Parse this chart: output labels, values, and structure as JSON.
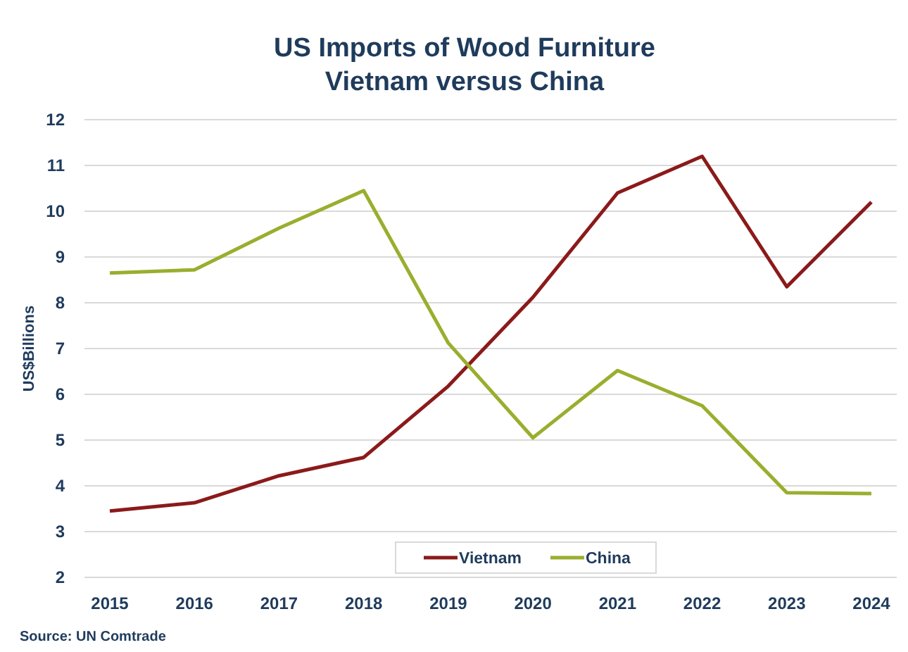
{
  "chart_data": {
    "type": "line",
    "title": "US Imports of Wood Furniture",
    "subtitle": "Vietnam versus China",
    "ylabel": "US$Billions",
    "categories": [
      "2015",
      "2016",
      "2017",
      "2018",
      "2019",
      "2020",
      "2021",
      "2022",
      "2023",
      "2024"
    ],
    "series": [
      {
        "name": "Vietnam",
        "color": "#8b1a1a",
        "values": [
          3.45,
          3.63,
          4.22,
          4.62,
          6.18,
          8.12,
          10.4,
          11.2,
          8.35,
          10.2
        ]
      },
      {
        "name": "China",
        "color": "#9aae2e",
        "values": [
          8.65,
          8.72,
          9.63,
          10.45,
          7.12,
          5.05,
          6.52,
          5.75,
          3.85,
          3.83
        ]
      }
    ],
    "ylim": [
      2,
      12
    ],
    "yticks": [
      2,
      3,
      4,
      5,
      6,
      7,
      8,
      9,
      10,
      11,
      12
    ],
    "grid": "y",
    "legend": "bottom",
    "marker": "none",
    "line_style": "solid",
    "annotations": [
      "Source: UN Comtrade"
    ]
  }
}
